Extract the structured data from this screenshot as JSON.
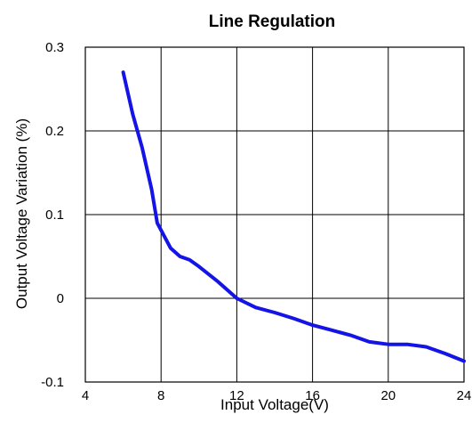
{
  "chart_data": {
    "type": "line",
    "title": "Line Regulation",
    "xlabel": "Input Voltage(V)",
    "ylabel": "Output Voltage Variation (%)",
    "xlim": [
      4,
      24
    ],
    "ylim": [
      -0.1,
      0.3
    ],
    "x_ticks": [
      "4",
      "8",
      "12",
      "16",
      "20",
      "24"
    ],
    "y_ticks": [
      "0.3",
      "0.2",
      "0.1",
      "0",
      "-0.1"
    ],
    "grid": true,
    "line_color": "#1414e6",
    "series": [
      {
        "x": [
          6,
          6.5,
          7,
          7.3,
          7.5,
          7.8,
          8.5,
          9,
          9.5,
          10,
          11,
          12,
          13,
          14,
          15,
          16,
          17,
          18,
          19,
          20,
          21,
          22,
          23,
          24
        ],
        "values": [
          0.27,
          0.22,
          0.18,
          0.15,
          0.13,
          0.09,
          0.06,
          0.05,
          0.046,
          0.038,
          0.02,
          0.0,
          -0.011,
          -0.017,
          -0.024,
          -0.032,
          -0.038,
          -0.044,
          -0.052,
          -0.055,
          -0.055,
          -0.058,
          -0.066,
          -0.075
        ]
      }
    ]
  }
}
